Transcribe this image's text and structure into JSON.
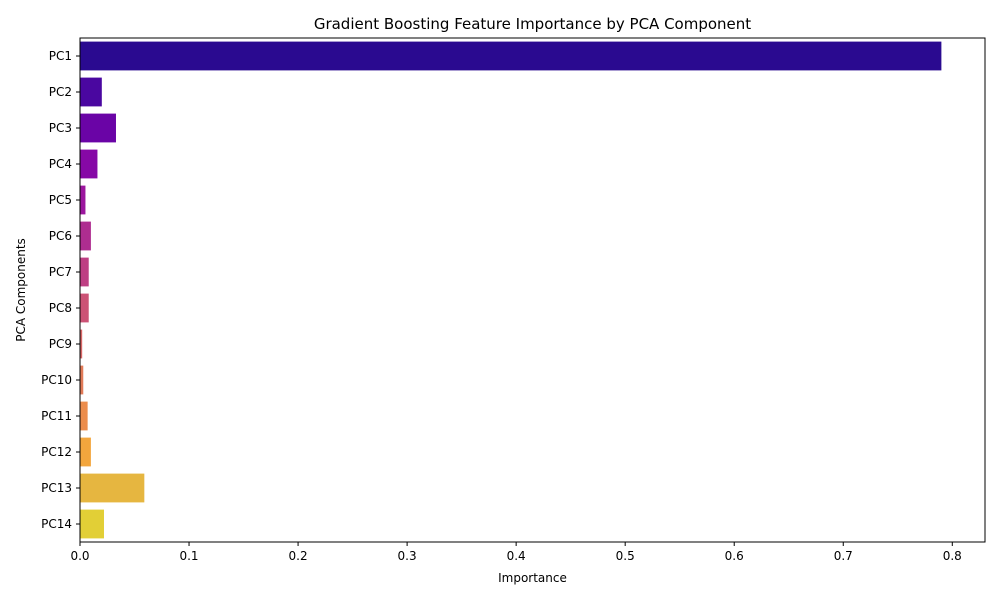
{
  "chart_data": {
    "type": "bar",
    "orientation": "horizontal",
    "title": "Gradient Boosting Feature Importance by PCA Component",
    "xlabel": "Importance",
    "ylabel": "PCA Components",
    "xlim": [
      0,
      0.83
    ],
    "xticks": [
      0.0,
      0.1,
      0.2,
      0.3,
      0.4,
      0.5,
      0.6,
      0.7,
      0.8
    ],
    "xtick_labels": [
      "0.0",
      "0.1",
      "0.2",
      "0.3",
      "0.4",
      "0.5",
      "0.6",
      "0.7",
      "0.8"
    ],
    "grid": false,
    "categories": [
      "PC1",
      "PC2",
      "PC3",
      "PC4",
      "PC5",
      "PC6",
      "PC7",
      "PC8",
      "PC9",
      "PC10",
      "PC11",
      "PC12",
      "PC13",
      "PC14"
    ],
    "values": [
      0.79,
      0.02,
      0.033,
      0.016,
      0.005,
      0.01,
      0.008,
      0.008,
      0.002,
      0.003,
      0.007,
      0.01,
      0.059,
      0.022
    ],
    "colors": [
      "#2a0a90",
      "#4a07a0",
      "#6a04a6",
      "#8608a6",
      "#9c179e",
      "#ae2d90",
      "#be3f83",
      "#cc5275",
      "#d96767",
      "#e27b58",
      "#ec8d4c",
      "#f3a63d",
      "#e6b640",
      "#e2cf36"
    ]
  }
}
